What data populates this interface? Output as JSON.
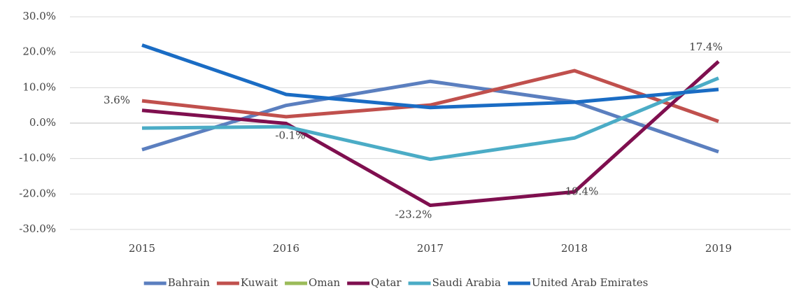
{
  "chart_data": {
    "type": "line",
    "categories": [
      "2015",
      "2016",
      "2017",
      "2018",
      "2019"
    ],
    "series": [
      {
        "name": "Bahrain",
        "color": "#5b7fbf",
        "values": [
          -7.5,
          5.0,
          11.8,
          6.0,
          -8.1
        ]
      },
      {
        "name": "Kuwait",
        "color": "#c0504d",
        "values": [
          6.3,
          1.8,
          5.1,
          14.8,
          0.5
        ]
      },
      {
        "name": "Oman",
        "color": "#9bbb59",
        "values": [
          null,
          null,
          null,
          null,
          null
        ]
      },
      {
        "name": "Qatar",
        "color": "#7f0f4f",
        "values": [
          3.6,
          -0.1,
          -23.2,
          -19.4,
          17.4
        ],
        "value_labels": [
          "3.6%",
          "-0.1%",
          "-23.2%",
          "-19.4%",
          "17.4%"
        ]
      },
      {
        "name": "Saudi Arabia",
        "color": "#4bacc6",
        "values": [
          -1.4,
          -1.0,
          -10.2,
          -4.2,
          12.7
        ]
      },
      {
        "name": "United Arab Emirates",
        "color": "#1a6cc4",
        "values": [
          22.0,
          8.1,
          4.4,
          5.9,
          9.5
        ]
      }
    ],
    "ylim": [
      -30,
      30
    ],
    "yticks": [
      {
        "value": -30,
        "label": "-30.0%"
      },
      {
        "value": -20,
        "label": "-20.0%"
      },
      {
        "value": -10,
        "label": "-10.0%"
      },
      {
        "value": 0,
        "label": "0.0%"
      },
      {
        "value": 10,
        "label": "10.0%"
      },
      {
        "value": 20,
        "label": "20.0%"
      },
      {
        "value": 30,
        "label": "30.0%"
      }
    ],
    "grid": true,
    "legend": "bottom"
  }
}
